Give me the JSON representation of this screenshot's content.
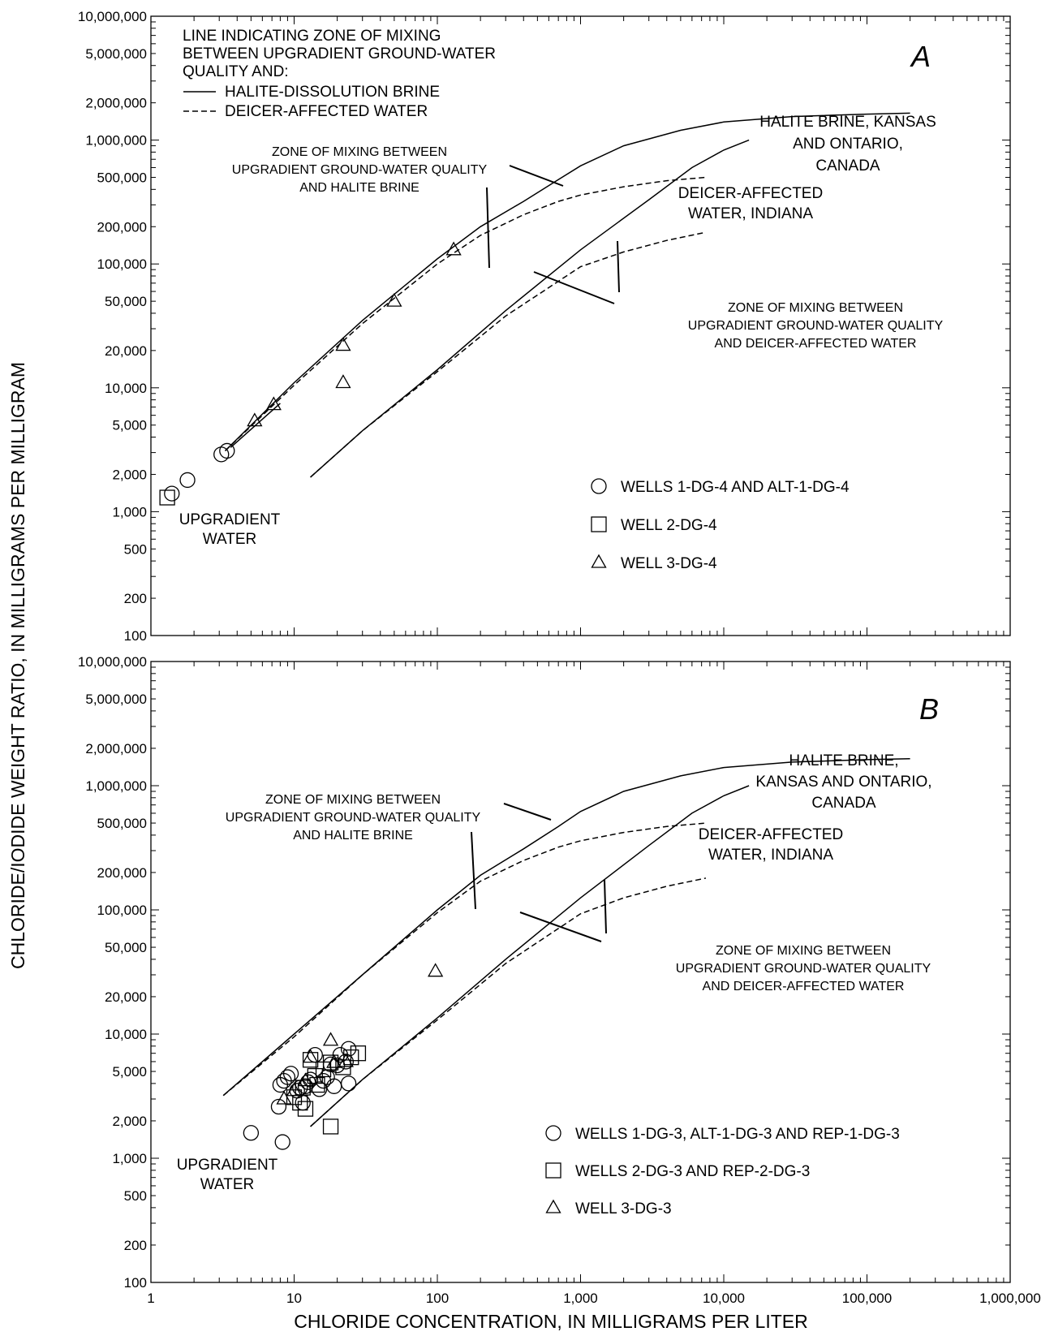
{
  "chart_data": {
    "type": "scatter",
    "ylabel": "CHLORIDE/IODIDE WEIGHT RATIO, IN MILLIGRAMS PER MILLIGRAM",
    "xlabel": "CHLORIDE CONCENTRATION, IN MILLIGRAMS PER LITER",
    "x_scale": "log",
    "y_scale": "log",
    "xlim": [
      1,
      1000000
    ],
    "ylim": [
      100,
      10000000
    ],
    "x_tick_values": [
      1,
      10,
      100,
      1000,
      10000,
      100000,
      1000000
    ],
    "x_tick_labels": [
      "1",
      "10",
      "100",
      "1,000",
      "10,000",
      "100,000",
      "1,000,000"
    ],
    "y_tick_values": [
      100,
      200,
      500,
      1000,
      2000,
      5000,
      10000,
      20000,
      50000,
      100000,
      200000,
      500000,
      1000000,
      2000000,
      5000000,
      10000000
    ],
    "y_tick_labels": [
      "100",
      "200",
      "500",
      "1,000",
      "2,000",
      "5,000",
      "10,000",
      "20,000",
      "50,000",
      "100,000",
      "200,000",
      "500,000",
      "1,000,000",
      "2,000,000",
      "5,000,000",
      "10,000,000"
    ],
    "grid": false,
    "line_key": {
      "title_lines": [
        "LINE INDICATING ZONE OF MIXING",
        "BETWEEN UPGRADIENT GROUND-WATER",
        "QUALITY AND:"
      ],
      "solid_label": "HALITE-DISSOLUTION BRINE",
      "dashed_label": "DEICER-AFFECTED WATER"
    },
    "panels": [
      {
        "letter": "A",
        "curves": [
          {
            "style": "solid",
            "points": [
              [
                3.3,
                3100
              ],
              [
                10,
                11000
              ],
              [
                30,
                35000
              ],
              [
                100,
                110000
              ],
              [
                200,
                200000
              ],
              [
                400,
                320000
              ],
              [
                700,
                480000
              ],
              [
                1000,
                620000
              ],
              [
                2000,
                900000
              ],
              [
                5000,
                1200000
              ],
              [
                10000,
                1400000
              ],
              [
                30000,
                1550000
              ],
              [
                100000,
                1620000
              ],
              [
                200000,
                1650000
              ]
            ]
          },
          {
            "style": "dashed",
            "points": [
              [
                3.3,
                3100
              ],
              [
                10,
                10500
              ],
              [
                30,
                33000
              ],
              [
                100,
                100000
              ],
              [
                200,
                170000
              ],
              [
                400,
                250000
              ],
              [
                700,
                320000
              ],
              [
                1000,
                360000
              ],
              [
                2000,
                420000
              ],
              [
                4000,
                470000
              ],
              [
                7500,
                500000
              ]
            ]
          },
          {
            "style": "solid",
            "points": [
              [
                13,
                1900
              ],
              [
                30,
                4500
              ],
              [
                100,
                14000
              ],
              [
                300,
                42000
              ],
              [
                1000,
                130000
              ],
              [
                3000,
                330000
              ],
              [
                6000,
                600000
              ],
              [
                10000,
                830000
              ],
              [
                15000,
                1000000
              ]
            ]
          },
          {
            "style": "dashed",
            "points": [
              [
                13,
                1900
              ],
              [
                30,
                4500
              ],
              [
                100,
                13500
              ],
              [
                300,
                38000
              ],
              [
                1000,
                95000
              ],
              [
                2000,
                125000
              ],
              [
                4000,
                155000
              ],
              [
                7500,
                180000
              ]
            ]
          },
          {
            "style": "solid",
            "points": [
              [
                3.6,
                3300
              ],
              [
                8,
                7500
              ]
            ]
          }
        ],
        "zone_labels": [
          {
            "lines": [
              "ZONE OF MIXING BETWEEN",
              "UPGRADIENT GROUND-WATER QUALITY",
              "AND HALITE BRINE"
            ]
          },
          {
            "lines": [
              "ZONE OF MIXING BETWEEN",
              "UPGRADIENT GROUND-WATER QUALITY",
              "AND DEICER-AFFECTED WATER"
            ]
          }
        ],
        "curve_labels": [
          {
            "lines": [
              "HALITE BRINE, KANSAS",
              "AND ONTARIO,",
              "CANADA"
            ]
          },
          {
            "lines": [
              "DEICER-AFFECTED",
              "WATER, INDIANA"
            ]
          },
          {
            "lines": [
              "UPGRADIENT",
              "WATER"
            ]
          }
        ],
        "series": [
          {
            "name": "WELLS 1-DG-4 AND ALT-1-DG-4",
            "marker": "circle",
            "points": [
              [
                1.4,
                1400
              ],
              [
                1.8,
                1800
              ],
              [
                3.1,
                2900
              ],
              [
                3.4,
                3100
              ]
            ]
          },
          {
            "name": "WELL 2-DG-4",
            "marker": "square",
            "points": [
              [
                1.3,
                1300
              ]
            ]
          },
          {
            "name": "WELL 3-DG-4",
            "marker": "triangle",
            "points": [
              [
                5.3,
                5400
              ],
              [
                7.2,
                7300
              ],
              [
                22,
                22000
              ],
              [
                22,
                11000
              ],
              [
                50,
                50000
              ],
              [
                130,
                130000
              ]
            ]
          }
        ]
      },
      {
        "letter": "B",
        "curves": [
          {
            "style": "solid",
            "points": [
              [
                3.2,
                3200
              ],
              [
                10,
                10000
              ],
              [
                30,
                30000
              ],
              [
                100,
                100000
              ],
              [
                200,
                190000
              ],
              [
                400,
                310000
              ],
              [
                700,
                470000
              ],
              [
                1000,
                620000
              ],
              [
                2000,
                900000
              ],
              [
                5000,
                1200000
              ],
              [
                10000,
                1400000
              ],
              [
                30000,
                1550000
              ],
              [
                100000,
                1620000
              ],
              [
                200000,
                1650000
              ]
            ]
          },
          {
            "style": "dashed",
            "points": [
              [
                3.2,
                3200
              ],
              [
                10,
                9500
              ],
              [
                30,
                30000
              ],
              [
                100,
                95000
              ],
              [
                200,
                170000
              ],
              [
                400,
                250000
              ],
              [
                700,
                320000
              ],
              [
                1000,
                360000
              ],
              [
                2000,
                420000
              ],
              [
                4000,
                470000
              ],
              [
                7500,
                500000
              ]
            ]
          },
          {
            "style": "solid",
            "points": [
              [
                13,
                1800
              ],
              [
                30,
                4300
              ],
              [
                100,
                13500
              ],
              [
                300,
                40000
              ],
              [
                1000,
                125000
              ],
              [
                3000,
                330000
              ],
              [
                6000,
                600000
              ],
              [
                10000,
                830000
              ],
              [
                15000,
                1000000
              ]
            ]
          },
          {
            "style": "dashed",
            "points": [
              [
                13,
                1800
              ],
              [
                30,
                4300
              ],
              [
                100,
                13000
              ],
              [
                300,
                37000
              ],
              [
                1000,
                93000
              ],
              [
                2000,
                125000
              ],
              [
                4000,
                155000
              ],
              [
                7500,
                180000
              ]
            ]
          }
        ],
        "zone_labels": [
          {
            "lines": [
              "ZONE OF MIXING BETWEEN",
              "UPGRADIENT GROUND-WATER QUALITY",
              "AND HALITE BRINE"
            ]
          },
          {
            "lines": [
              "ZONE OF MIXING BETWEEN",
              "UPGRADIENT GROUND-WATER QUALITY",
              "AND DEICER-AFFECTED WATER"
            ]
          }
        ],
        "curve_labels": [
          {
            "lines": [
              "HALITE BRINE,",
              "KANSAS AND ONTARIO,",
              "CANADA"
            ]
          },
          {
            "lines": [
              "DEICER-AFFECTED",
              "WATER, INDIANA"
            ]
          },
          {
            "lines": [
              "UPGRADIENT",
              "WATER"
            ]
          }
        ],
        "series": [
          {
            "name": "WELLS 1-DG-3, ALT-1-DG-3 AND REP-1-DG-3",
            "marker": "circle",
            "points": [
              [
                5,
                1600
              ],
              [
                8.3,
                1350
              ],
              [
                7.8,
                2600
              ],
              [
                8,
                3900
              ],
              [
                8.5,
                4200
              ],
              [
                9,
                4500
              ],
              [
                9.5,
                4800
              ],
              [
                10.5,
                3500
              ],
              [
                11,
                3700
              ],
              [
                11.5,
                2800
              ],
              [
                12,
                3800
              ],
              [
                12.5,
                4100
              ],
              [
                13,
                4300
              ],
              [
                14,
                6800
              ],
              [
                15,
                3600
              ],
              [
                16,
                4200
              ],
              [
                17,
                4500
              ],
              [
                18,
                5700
              ],
              [
                19,
                3800
              ],
              [
                20,
                5600
              ],
              [
                21,
                6800
              ],
              [
                23,
                6000
              ],
              [
                24,
                7600
              ],
              [
                24,
                4000
              ]
            ]
          },
          {
            "name": "WELLS 2-DG-3 AND REP-2-DG-3",
            "marker": "square",
            "points": [
              [
                18,
                1800
              ],
              [
                10,
                3100
              ],
              [
                11,
                2800
              ],
              [
                12,
                2500
              ],
              [
                13,
                6200
              ],
              [
                14,
                4600
              ],
              [
                16,
                5200
              ],
              [
                18,
                5900
              ],
              [
                22,
                5400
              ],
              [
                25,
                6500
              ],
              [
                28,
                7000
              ],
              [
                11.5,
                3700
              ],
              [
                14.5,
                3900
              ]
            ]
          },
          {
            "name": "WELL 3-DG-3",
            "marker": "triangle",
            "points": [
              [
                97,
                32000
              ],
              [
                18,
                8900
              ],
              [
                8.5,
                3000
              ],
              [
                10,
                3500
              ],
              [
                13,
                6500
              ],
              [
                19,
                5900
              ],
              [
                23,
                6000
              ],
              [
                12,
                4200
              ]
            ]
          }
        ]
      }
    ]
  }
}
